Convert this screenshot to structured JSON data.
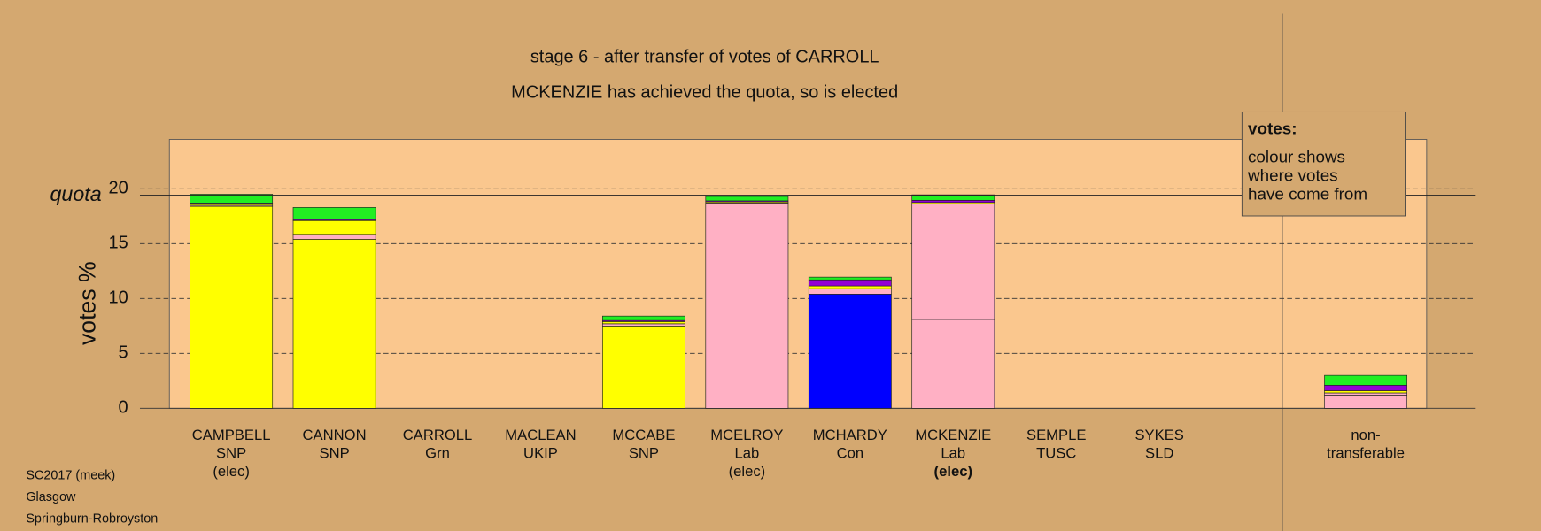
{
  "chart_data": {
    "type": "stacked_bar",
    "title": "stage 6 - after transfer of votes of CARROLL",
    "subtitle": "MCKENZIE has achieved the quota, so is elected",
    "ylabel": "votes %",
    "quota_label": "quota",
    "quota": 19.4,
    "categories": [
      [
        "CAMPBELL",
        "SNP",
        "(elec)"
      ],
      [
        "CANNON",
        "SNP"
      ],
      [
        "CARROLL",
        "Grn"
      ],
      [
        "MACLEAN",
        "UKIP"
      ],
      [
        "MCCABE",
        "SNP"
      ],
      [
        "MCELROY",
        "Lab",
        "(elec)"
      ],
      [
        "MCHARDY",
        "Con"
      ],
      [
        "MCKENZIE",
        "Lab",
        "(elec)"
      ],
      [
        "SEMPLE",
        "TUSC"
      ],
      [
        "SYKES",
        "SLD"
      ],
      null,
      [
        "non-",
        "transferable"
      ]
    ],
    "highlight_category": 7,
    "series": [
      {
        "color": "#ffff00",
        "values": [
          18.4,
          15.4,
          0,
          0,
          7.5,
          0,
          0,
          0,
          0,
          0,
          null,
          0
        ]
      },
      {
        "color": "#0000ff",
        "values": [
          0,
          0,
          0,
          0,
          0,
          0,
          10.4,
          0,
          0,
          0,
          null,
          0
        ]
      },
      {
        "color": "#ffb0c4",
        "values": [
          0.1,
          0.45,
          0,
          0,
          0.2,
          18.7,
          0.5,
          8.1,
          0,
          0,
          null,
          1.2
        ]
      },
      {
        "color": "#ffb0c4",
        "values": [
          0,
          0,
          0,
          0,
          0,
          0,
          0,
          10.5,
          0,
          0,
          null,
          0.2
        ]
      },
      {
        "color": "#ffff00",
        "values": [
          0.1,
          1.25,
          0,
          0,
          0.2,
          0.1,
          0.25,
          0.15,
          0,
          0,
          null,
          0.2
        ]
      },
      {
        "color": "#9400d3",
        "values": [
          0.1,
          0.1,
          0,
          0,
          0.1,
          0.1,
          0.55,
          0.2,
          0,
          0,
          null,
          0.5
        ]
      },
      {
        "color": "#22ee22",
        "values": [
          0.8,
          1.1,
          0,
          0,
          0.4,
          0.4,
          0.25,
          0.5,
          0,
          0,
          null,
          0.9
        ]
      }
    ],
    "ylim": [
      0,
      24.5
    ],
    "yticks": [
      0,
      5,
      10,
      15,
      20
    ],
    "grid": true,
    "legend": {
      "title": "votes:",
      "lines": [
        "colour shows",
        "where votes",
        "have come from"
      ]
    },
    "footer": [
      "SC2017 (meek)",
      "Glasgow",
      "Springburn-Robroyston"
    ]
  }
}
